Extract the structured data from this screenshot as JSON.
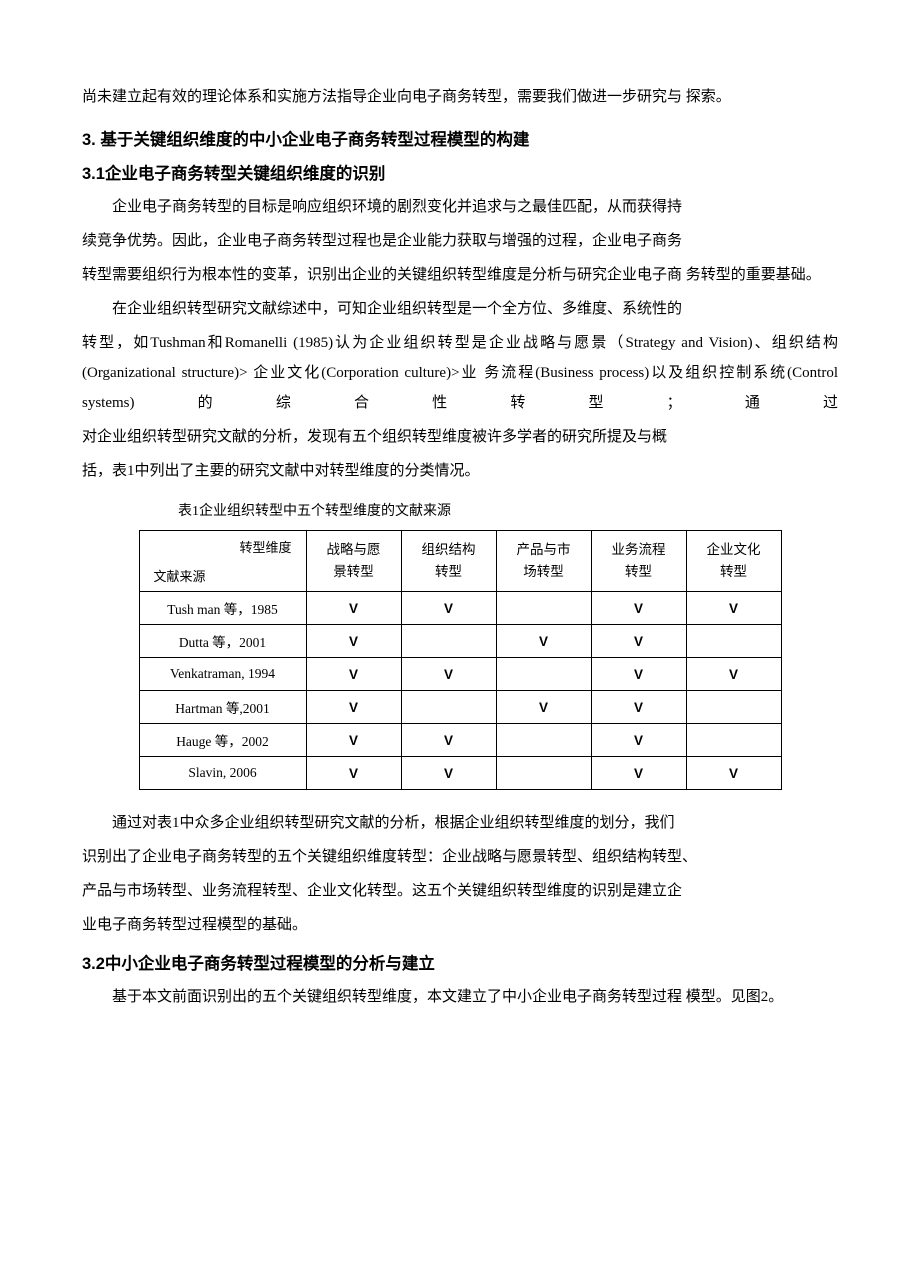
{
  "intro_para": "尚未建立起有效的理论体系和实施方法指导企业向电子商务转型，需要我们做进一步研究与 探索。",
  "h_section3": "3.   基于关键组织维度的中小企业电子商务转型过程模型的构建",
  "h_section31": "3.1企业电子商务转型关键组织维度的识别",
  "p31_1": "企业电子商务转型的目标是响应组织环境的剧烈变化并追求与之最佳匹配，从而获得持",
  "p31_2": "续竞争优势。因此，企业电子商务转型过程也是企业能力获取与增强的过程，企业电子商务",
  "p31_3": "转型需要组织行为根本性的变革，识别出企业的关键组织转型维度是分析与研究企业电子商 务转型的重要基础。",
  "p31_4": "在企业组织转型研究文献综述中，可知企业组织转型是一个全方位、多维度、系统性的",
  "p31_5": "转型，如Tushman和Romanelli (1985)认为企业组织转型是企业战略与愿景（Strategy and Vision)、组织结构(Organizational structure)> 企业文化(Corporation culture)>业 务流程(Business process)以及组织控制系统(Control systems)的综合性转型；通过",
  "p31_6": "对企业组织转型研究文献的分析，发现有五个组织转型维度被许多学者的研究所提及与概",
  "p31_7": "括，表1中列出了主要的研究文献中对转型维度的分类情况。",
  "table_caption": "表1企业组织转型中五个转型维度的文献来源",
  "table": {
    "diag_top": "转型维度",
    "diag_bot": "文献来源",
    "columns": [
      [
        "战略与愿",
        "景转型"
      ],
      [
        "组织结构",
        "转型"
      ],
      [
        "产品与市",
        "场转型"
      ],
      [
        "业务流程",
        "转型"
      ],
      [
        "企业文化",
        "转型"
      ]
    ],
    "rows": [
      {
        "src": "Tush man 等，1985",
        "marks": [
          "V",
          "V",
          "",
          "V",
          "V"
        ]
      },
      {
        "src": "Dutta 等，2001",
        "marks": [
          "V",
          "",
          "V",
          "V",
          ""
        ]
      },
      {
        "src": "Venkatraman, 1994",
        "marks": [
          "V",
          "V",
          "",
          "V",
          "V"
        ]
      },
      {
        "src": "Hartman 等,2001",
        "marks": [
          "V",
          "",
          "V",
          "V",
          ""
        ]
      },
      {
        "src": "Hauge 等，2002",
        "marks": [
          "V",
          "V",
          "",
          "V",
          ""
        ]
      },
      {
        "src": "Slavin, 2006",
        "marks": [
          "V",
          "V",
          "",
          "V",
          "V"
        ]
      }
    ]
  },
  "p31_after1": "通过对表1中众多企业组织转型研究文献的分析，根据企业组织转型维度的划分，我们",
  "p31_after2": "识别出了企业电子商务转型的五个关键组织维度转型：企业战略与愿景转型、组织结构转型、",
  "p31_after3": "产品与市场转型、业务流程转型、企业文化转型。这五个关键组织转型维度的识别是建立企",
  "p31_after4": "业电子商务转型过程模型的基础。",
  "h_section32": "3.2中小企业电子商务转型过程模型的分析与建立",
  "p32_1": "基于本文前面识别出的五个关键组织转型维度，本文建立了中小企业电子商务转型过程 模型。见图2。"
}
